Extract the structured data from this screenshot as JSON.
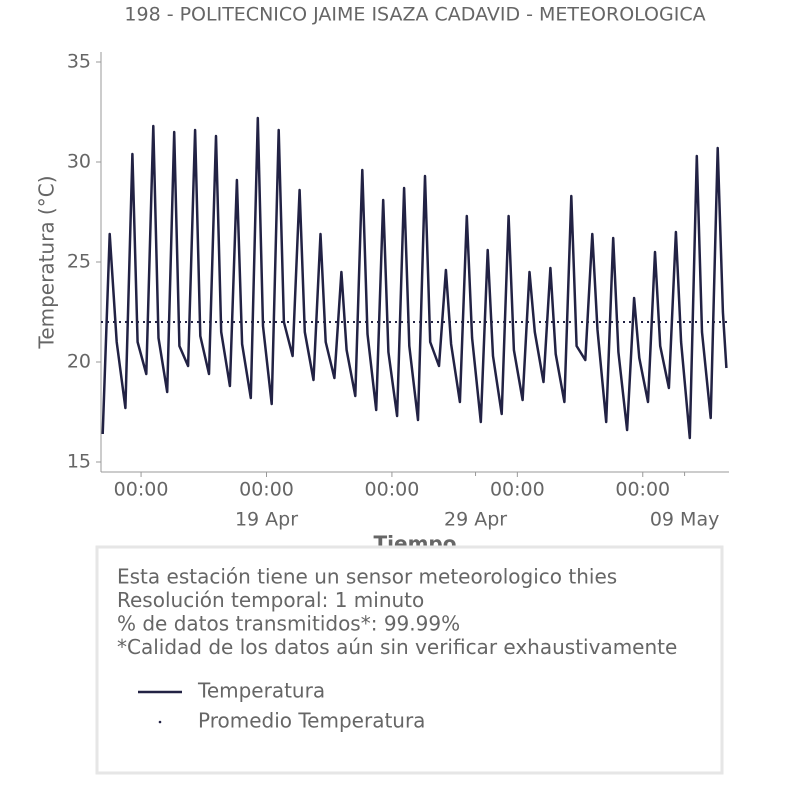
{
  "chart_data": {
    "type": "line",
    "title": "198 - POLITECNICO JAIME ISAZA CADAVID - METEOROLOGICA",
    "ylabel": "Temperatura (°C)",
    "xlabel": "Tiempo",
    "x": [
      "11 Apr 04:00",
      "11 Apr 12:00",
      "11 Apr 20:00",
      "12 Apr 06:00",
      "12 Apr 14:00",
      "12 Apr 20:00",
      "13 Apr 06:00",
      "13 Apr 14:00",
      "13 Apr 20:00",
      "14 Apr 06:00",
      "14 Apr 14:00",
      "14 Apr 20:00",
      "15 Apr 06:00",
      "15 Apr 14:00",
      "15 Apr 20:00",
      "16 Apr 06:00",
      "16 Apr 14:00",
      "16 Apr 20:00",
      "17 Apr 06:00",
      "17 Apr 14:00",
      "17 Apr 20:00",
      "18 Apr 06:00",
      "18 Apr 14:00",
      "18 Apr 20:00",
      "19 Apr 06:00",
      "19 Apr 14:00",
      "19 Apr 20:00",
      "20 Apr 06:00",
      "20 Apr 14:00",
      "20 Apr 20:00",
      "21 Apr 06:00",
      "21 Apr 14:00",
      "21 Apr 20:00",
      "22 Apr 06:00",
      "22 Apr 14:00",
      "22 Apr 20:00",
      "23 Apr 06:00",
      "23 Apr 14:00",
      "23 Apr 20:00",
      "24 Apr 06:00",
      "24 Apr 14:00",
      "24 Apr 20:00",
      "25 Apr 06:00",
      "25 Apr 14:00",
      "25 Apr 20:00",
      "26 Apr 06:00",
      "26 Apr 14:00",
      "26 Apr 20:00",
      "27 Apr 06:00",
      "27 Apr 14:00",
      "27 Apr 20:00",
      "28 Apr 06:00",
      "28 Apr 14:00",
      "28 Apr 20:00",
      "29 Apr 06:00",
      "29 Apr 14:00",
      "29 Apr 20:00",
      "30 Apr 06:00",
      "30 Apr 14:00",
      "30 Apr 20:00",
      "01 May 06:00",
      "01 May 14:00",
      "01 May 20:00",
      "02 May 06:00",
      "02 May 14:00",
      "02 May 20:00",
      "03 May 06:00",
      "03 May 14:00",
      "03 May 20:00",
      "04 May 06:00",
      "04 May 14:00",
      "04 May 20:00",
      "05 May 06:00",
      "05 May 14:00",
      "05 May 20:00",
      "06 May 06:00",
      "06 May 14:00",
      "06 May 20:00",
      "07 May 06:00",
      "07 May 14:00",
      "07 May 20:00",
      "08 May 06:00",
      "08 May 14:00",
      "08 May 20:00",
      "09 May 06:00",
      "09 May 14:00",
      "09 May 20:00",
      "10 May 06:00",
      "10 May 14:00",
      "10 May 20:00",
      "11 May 00:00"
    ],
    "series": [
      {
        "name": "Temperatura",
        "color": "#222244",
        "values": [
          16.4,
          26.4,
          21.0,
          17.7,
          30.4,
          21.0,
          19.4,
          31.8,
          21.2,
          18.5,
          31.5,
          20.8,
          19.8,
          31.6,
          21.3,
          19.4,
          31.3,
          21.5,
          18.8,
          29.1,
          20.9,
          18.2,
          32.2,
          21.8,
          17.9,
          31.6,
          22.0,
          20.3,
          28.6,
          21.5,
          19.1,
          26.4,
          21.0,
          19.2,
          24.5,
          20.6,
          18.3,
          29.6,
          21.4,
          17.6,
          28.1,
          20.5,
          17.3,
          28.7,
          20.8,
          17.1,
          29.3,
          21.0,
          19.8,
          24.6,
          20.9,
          18.0,
          27.3,
          21.2,
          17.0,
          25.6,
          20.3,
          17.4,
          27.3,
          20.6,
          18.1,
          24.5,
          21.5,
          19.0,
          24.7,
          20.4,
          18.0,
          28.3,
          20.8,
          20.1,
          26.4,
          21.6,
          17.0,
          26.2,
          20.5,
          16.6,
          23.2,
          20.2,
          18.0,
          25.5,
          20.8,
          18.7,
          26.5,
          21.0,
          16.2,
          30.3,
          21.5,
          17.2,
          30.7,
          22.5,
          19.7
        ]
      }
    ],
    "reference_line": {
      "name": "Promedio Temperatura",
      "value": 22.0,
      "color": "#222244",
      "style": "dotted"
    },
    "xlim": [
      "11 Apr 02:00",
      "11 May 03:00"
    ],
    "xticks": [
      {
        "value": "13 Apr 00:00",
        "label": "00:00"
      },
      {
        "value": "19 Apr 00:00",
        "label": "00:00"
      },
      {
        "value": "25 Apr 00:00",
        "label": "00:00"
      },
      {
        "value": "01 May 00:00",
        "label": "00:00"
      },
      {
        "value": "07 May 00:00",
        "label": "00:00"
      }
    ],
    "xdate_ticks": [
      {
        "value": "19 Apr 00:00",
        "label": "19 Apr"
      },
      {
        "value": "29 Apr 00:00",
        "label": "29 Apr"
      },
      {
        "value": "09 May 00:00",
        "label": "09 May"
      }
    ],
    "ylim": [
      14.5,
      35.5
    ],
    "yticks": [
      15,
      20,
      25,
      30,
      35
    ],
    "notes": [
      "Esta estación tiene un sensor meteorologico thies",
      "Resolución temporal: 1 minuto",
      "% de datos transmitidos*: 99.99%",
      "*Calidad de los datos aún sin verificar exhaustivamente"
    ]
  }
}
